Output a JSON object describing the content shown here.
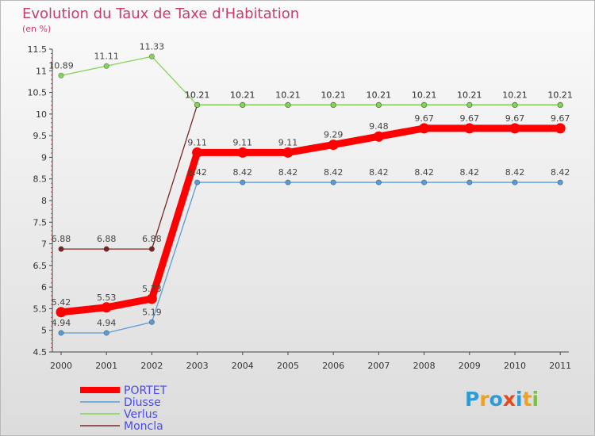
{
  "title": "Evolution du Taux de Taxe d'Habitation",
  "unit": "(en %)",
  "logo": {
    "text": "Proxiti",
    "colors": [
      "#2e9ad6",
      "#f0a020",
      "#2e9ad6",
      "#e34a1c",
      "#2e9ad6",
      "#f0a020",
      "#7cc242"
    ]
  },
  "chart_data": {
    "type": "line",
    "title": "Evolution du Taux de Taxe d'Habitation",
    "ylabel": "(en %)",
    "xlabel": "",
    "ylim": [
      4.5,
      11.5
    ],
    "yticks": [
      "4.5",
      "5",
      "5.5",
      "6",
      "6.5",
      "7",
      "7.5",
      "8",
      "8.5",
      "9",
      "9.5",
      "10",
      "10.5",
      "11",
      "11.5"
    ],
    "x": [
      "2000",
      "2001",
      "2002",
      "2003",
      "2004",
      "2005",
      "2006",
      "2007",
      "2008",
      "2009",
      "2010",
      "2011"
    ],
    "series": [
      {
        "name": "PORTET",
        "color": "#ff0000",
        "weight": "thick",
        "values": [
          5.42,
          5.53,
          5.73,
          9.11,
          9.11,
          9.11,
          9.29,
          9.48,
          9.67,
          9.67,
          9.67,
          9.67
        ],
        "labels": [
          "5.42",
          "5.53",
          "5.73",
          "9.11",
          "9.11",
          "9.11",
          "9.29",
          "9.48",
          "9.67",
          "9.67",
          "9.67",
          "9.67"
        ]
      },
      {
        "name": "Diusse",
        "color": "#5b9bd5",
        "weight": "thin",
        "values": [
          4.94,
          4.94,
          5.19,
          8.42,
          8.42,
          8.42,
          8.42,
          8.42,
          8.42,
          8.42,
          8.42,
          8.42
        ],
        "labels": [
          "4.94",
          "4.94",
          "5.19",
          "8.42",
          "8.42",
          "8.42",
          "8.42",
          "8.42",
          "8.42",
          "8.42",
          "8.42",
          "8.42"
        ]
      },
      {
        "name": "Verlus",
        "color": "#86d35a",
        "weight": "thin",
        "values": [
          10.89,
          11.11,
          11.33,
          10.21,
          10.21,
          10.21,
          10.21,
          10.21,
          10.21,
          10.21,
          10.21,
          10.21
        ],
        "labels": [
          "10.89",
          "11.11",
          "11.33",
          "10.21",
          "10.21",
          "10.21",
          "10.21",
          "10.21",
          "10.21",
          "10.21",
          "10.21",
          "10.21"
        ]
      },
      {
        "name": "Moncla",
        "color": "#7a2626",
        "weight": "thin",
        "values": [
          6.88,
          6.88,
          6.88,
          10.21,
          10.21,
          10.21,
          10.21,
          10.21,
          10.21,
          10.21,
          10.21,
          10.21
        ],
        "labels": [
          "6.88",
          "6.88",
          "6.88",
          "10.21",
          "10.21",
          "10.21",
          "10.21",
          "10.21",
          "10.21",
          "10.21",
          "10.21",
          "10.21"
        ]
      }
    ],
    "grid": false,
    "legend": "bottom-left"
  }
}
